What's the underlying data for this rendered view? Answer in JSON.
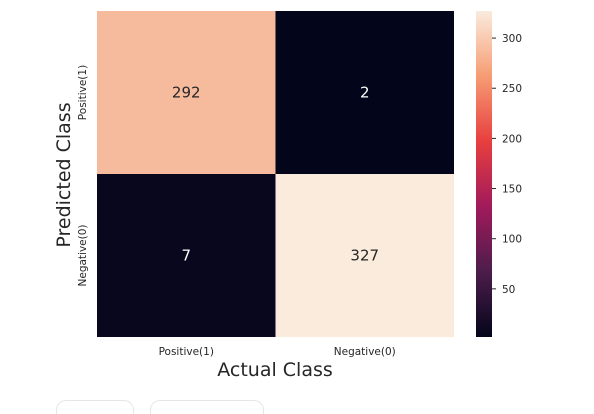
{
  "chart_data": {
    "type": "heatmap",
    "title": "",
    "xlabel": "Actual Class",
    "ylabel": "Predicted Class",
    "x_categories": [
      "Positive(1)",
      "Negative(0)"
    ],
    "y_categories": [
      "Positive(1)",
      "Negative(0)"
    ],
    "values": [
      [
        292,
        2
      ],
      [
        7,
        327
      ]
    ],
    "colorbar": {
      "min": 2,
      "max": 327,
      "ticks": [
        50,
        100,
        150,
        200,
        250,
        300
      ]
    },
    "colormap": "rocket",
    "annotations": true
  },
  "colors": {
    "low_text": "#ffffff",
    "high_text": "#262626"
  }
}
